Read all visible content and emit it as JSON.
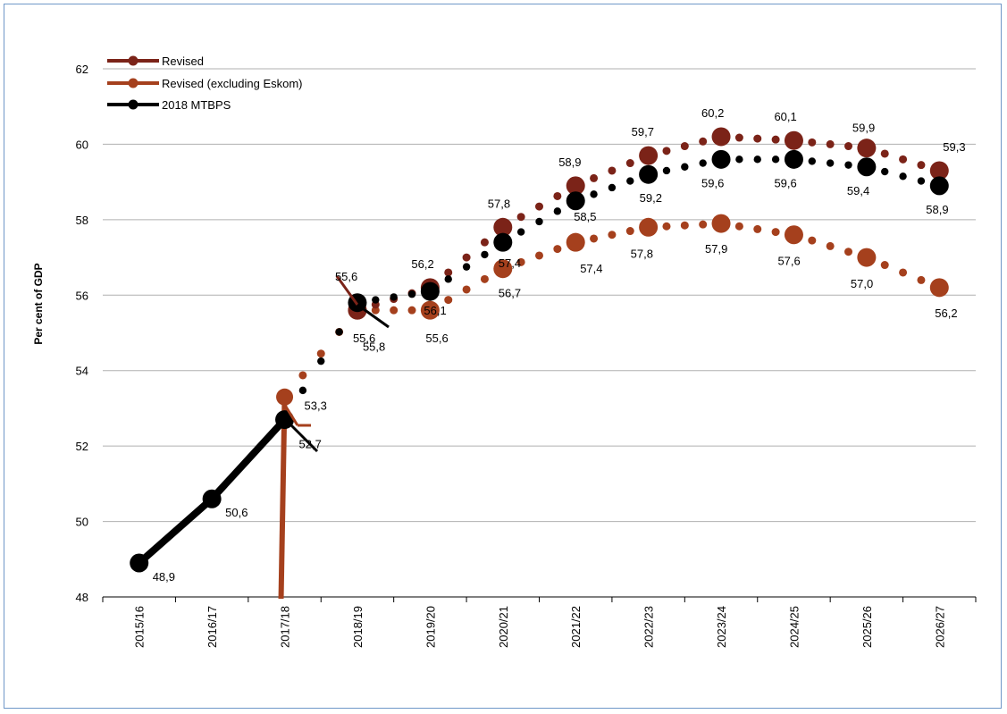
{
  "chart_data": {
    "type": "line",
    "ylabel": "Per cent of GDP",
    "xlabel": "",
    "ylim": [
      48,
      62
    ],
    "yticks": [
      48,
      50,
      52,
      54,
      56,
      58,
      60,
      62
    ],
    "grid": "horizontal",
    "legend_position": "top-left",
    "categories": [
      "2015/16",
      "2016/17",
      "2017/18",
      "2018/19",
      "2019/20",
      "2020/21",
      "2021/22",
      "2022/23",
      "2023/24",
      "2024/25",
      "2025/26",
      "2026/27"
    ],
    "series": [
      {
        "name": "Revised",
        "color": "#7b2318",
        "style": "dotted",
        "points": [
          {
            "cat": "2017/18",
            "value": 53.3
          },
          {
            "cat": "2018/19",
            "value": 55.6,
            "label": "55,6"
          },
          {
            "cat": "2019/20",
            "value": 56.2,
            "label": "56,2"
          },
          {
            "cat": "2020/21",
            "value": 57.8,
            "label": "57,8"
          },
          {
            "cat": "2021/22",
            "value": 58.9,
            "label": "58,9"
          },
          {
            "cat": "2022/23",
            "value": 59.7,
            "label": "59,7"
          },
          {
            "cat": "2023/24",
            "value": 60.2,
            "label": "60,2"
          },
          {
            "cat": "2024/25",
            "value": 60.1,
            "label": "60,1"
          },
          {
            "cat": "2025/26",
            "value": 59.9,
            "label": "59,9"
          },
          {
            "cat": "2026/27",
            "value": 59.3,
            "label": "59,3"
          }
        ]
      },
      {
        "name": "Revised (excluding Eskom)",
        "color": "#a5401d",
        "style": "dotted",
        "points": [
          {
            "cat": "2017/18",
            "value": 53.3,
            "label": "53,3"
          },
          {
            "cat": "2018/19",
            "value": 55.6,
            "label": "55,6"
          },
          {
            "cat": "2019/20",
            "value": 55.6,
            "label": "55,6"
          },
          {
            "cat": "2020/21",
            "value": 56.7,
            "label": "56,7"
          },
          {
            "cat": "2021/22",
            "value": 57.4,
            "label": "57,4"
          },
          {
            "cat": "2022/23",
            "value": 57.8,
            "label": "57,8"
          },
          {
            "cat": "2023/24",
            "value": 57.9,
            "label": "57,9"
          },
          {
            "cat": "2024/25",
            "value": 57.6,
            "label": "57,6"
          },
          {
            "cat": "2025/26",
            "value": 57.0,
            "label": "57,0"
          },
          {
            "cat": "2026/27",
            "value": 56.2,
            "label": "56,2"
          }
        ]
      },
      {
        "name": "2018 MTBPS",
        "color": "#000000",
        "style": "solid-then-dotted",
        "points": [
          {
            "cat": "2015/16",
            "value": 48.9,
            "label": "48,9"
          },
          {
            "cat": "2016/17",
            "value": 50.6,
            "label": "50,6"
          },
          {
            "cat": "2017/18",
            "value": 52.7,
            "label": "52,7"
          },
          {
            "cat": "2018/19",
            "value": 55.8,
            "label": "55,8"
          },
          {
            "cat": "2019/20",
            "value": 56.1,
            "label": "56,1"
          },
          {
            "cat": "2020/21",
            "value": 57.4,
            "label": "57,4"
          },
          {
            "cat": "2021/22",
            "value": 58.5,
            "label": "58,5"
          },
          {
            "cat": "2022/23",
            "value": 59.2,
            "label": "59,2"
          },
          {
            "cat": "2023/24",
            "value": 59.6,
            "label": "59,6"
          },
          {
            "cat": "2024/25",
            "value": 59.6,
            "label": "59,6"
          },
          {
            "cat": "2025/26",
            "value": 59.4,
            "label": "59,4"
          },
          {
            "cat": "2026/27",
            "value": 58.9,
            "label": "58,9"
          }
        ]
      }
    ]
  }
}
